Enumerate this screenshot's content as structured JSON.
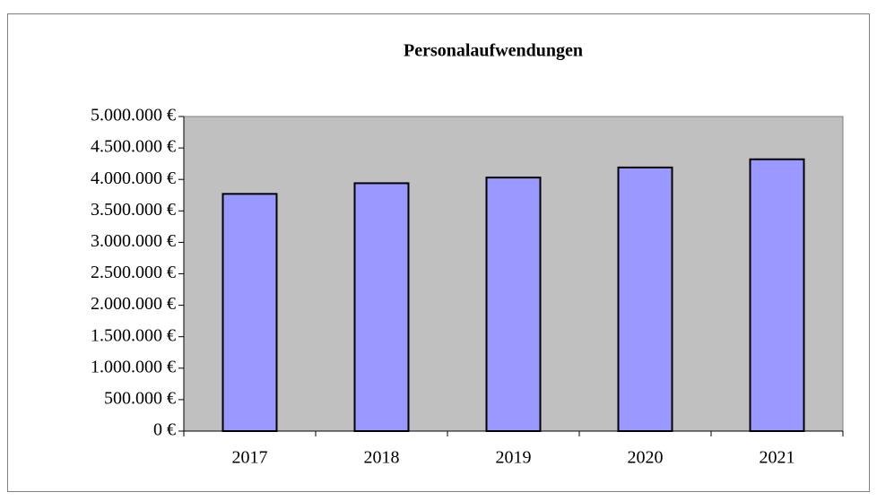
{
  "chart_data": {
    "type": "bar",
    "title": "Personalaufwendungen",
    "categories": [
      "2017",
      "2018",
      "2019",
      "2020",
      "2021"
    ],
    "values": [
      3770000,
      3940000,
      4030000,
      4190000,
      4320000
    ],
    "color": "#9999ff",
    "ylim": [
      0,
      5000000
    ],
    "yticks": [
      {
        "value": 0,
        "label": "0 €"
      },
      {
        "value": 500000,
        "label": "500.000 €"
      },
      {
        "value": 1000000,
        "label": "1.000.000 €"
      },
      {
        "value": 1500000,
        "label": "1.500.000 €"
      },
      {
        "value": 2000000,
        "label": "2.000.000 €"
      },
      {
        "value": 2500000,
        "label": "2.500.000 €"
      },
      {
        "value": 3000000,
        "label": "3.000.000 €"
      },
      {
        "value": 3500000,
        "label": "3.500.000 €"
      },
      {
        "value": 4000000,
        "label": "4.000.000 €"
      },
      {
        "value": 4500000,
        "label": "4.500.000 €"
      },
      {
        "value": 5000000,
        "label": "5.000.000 €"
      }
    ]
  }
}
